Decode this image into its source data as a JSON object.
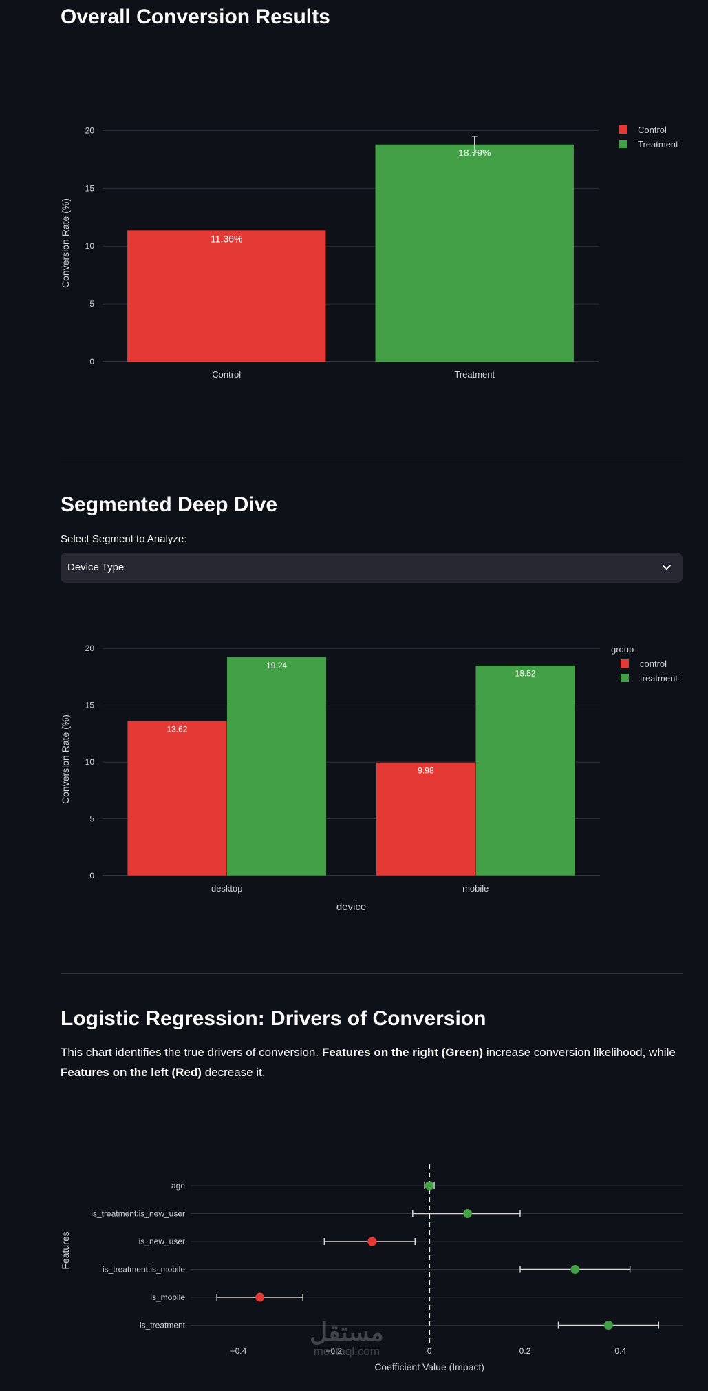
{
  "sections": {
    "overall_title": "Overall Conversion Results",
    "segment_title": "Segmented Deep Dive",
    "segment_select_label": "Select Segment to Analyze:",
    "segment_select_value": "Device Type",
    "regression_title": "Logistic Regression: Drivers of Conversion",
    "regression_desc": {
      "p1": "This chart identifies the true drivers of conversion. ",
      "b1": "Features on the right (Green)",
      "p2": " increase conversion likelihood, while ",
      "b2": "Features on the left (Red)",
      "p3": " decrease it."
    }
  },
  "watermark": {
    "arabic": "مستقل",
    "latin": "mostaql.com"
  },
  "colors": {
    "red": "#e53935",
    "green": "#43a047",
    "grid": "#2b2f3a",
    "axis_text": "#d0d3d8",
    "bg": "#0e1117"
  },
  "chart_data": [
    {
      "type": "bar",
      "categories": [
        "Control",
        "Treatment"
      ],
      "series": [
        {
          "values": [
            11.36,
            18.79
          ]
        }
      ],
      "bar_colors": [
        "#e53935",
        "#43a047"
      ],
      "data_labels": [
        "11.36%",
        "18.79%"
      ],
      "error_bars": [
        null,
        [
          18.1,
          19.5
        ]
      ],
      "ylabel": "Conversion Rate (%)",
      "yticks": [
        0,
        5,
        10,
        15,
        20
      ],
      "ylim": [
        0,
        20.5
      ],
      "legend": {
        "title": "",
        "entries": [
          "Control",
          "Treatment"
        ],
        "position": "top-right"
      }
    },
    {
      "type": "bar",
      "categories": [
        "desktop",
        "mobile"
      ],
      "series": [
        {
          "name": "control",
          "values": [
            13.62,
            9.98
          ],
          "labels": [
            "13.62",
            "9.98"
          ]
        },
        {
          "name": "treatment",
          "values": [
            19.24,
            18.52
          ],
          "labels": [
            "19.24",
            "18.52"
          ]
        }
      ],
      "xlabel": "device",
      "ylabel": "Conversion Rate (%)",
      "yticks": [
        0,
        5,
        10,
        15,
        20
      ],
      "ylim": [
        0,
        20.5
      ],
      "legend": {
        "title": "group",
        "position": "top-right"
      }
    },
    {
      "type": "scatter",
      "features": [
        "age",
        "is_treatment:is_new_user",
        "is_new_user",
        "is_treatment:is_mobile",
        "is_mobile",
        "is_treatment"
      ],
      "coef": [
        0.0,
        0.08,
        -0.12,
        0.305,
        -0.355,
        0.375
      ],
      "ci_low": [
        -0.01,
        -0.035,
        -0.22,
        0.19,
        -0.445,
        0.27
      ],
      "ci_high": [
        0.01,
        0.19,
        -0.03,
        0.42,
        -0.265,
        0.48
      ],
      "xlabel": "Coefficient Value (Impact)",
      "ylabel": "Features",
      "xticks": [
        "−0.4",
        "−0.2",
        "0",
        "0.2",
        "0.4"
      ],
      "xtick_values": [
        -0.4,
        -0.2,
        0,
        0.2,
        0.4
      ],
      "xlim": [
        -0.5,
        0.53
      ],
      "zero_line": "dashed"
    }
  ]
}
